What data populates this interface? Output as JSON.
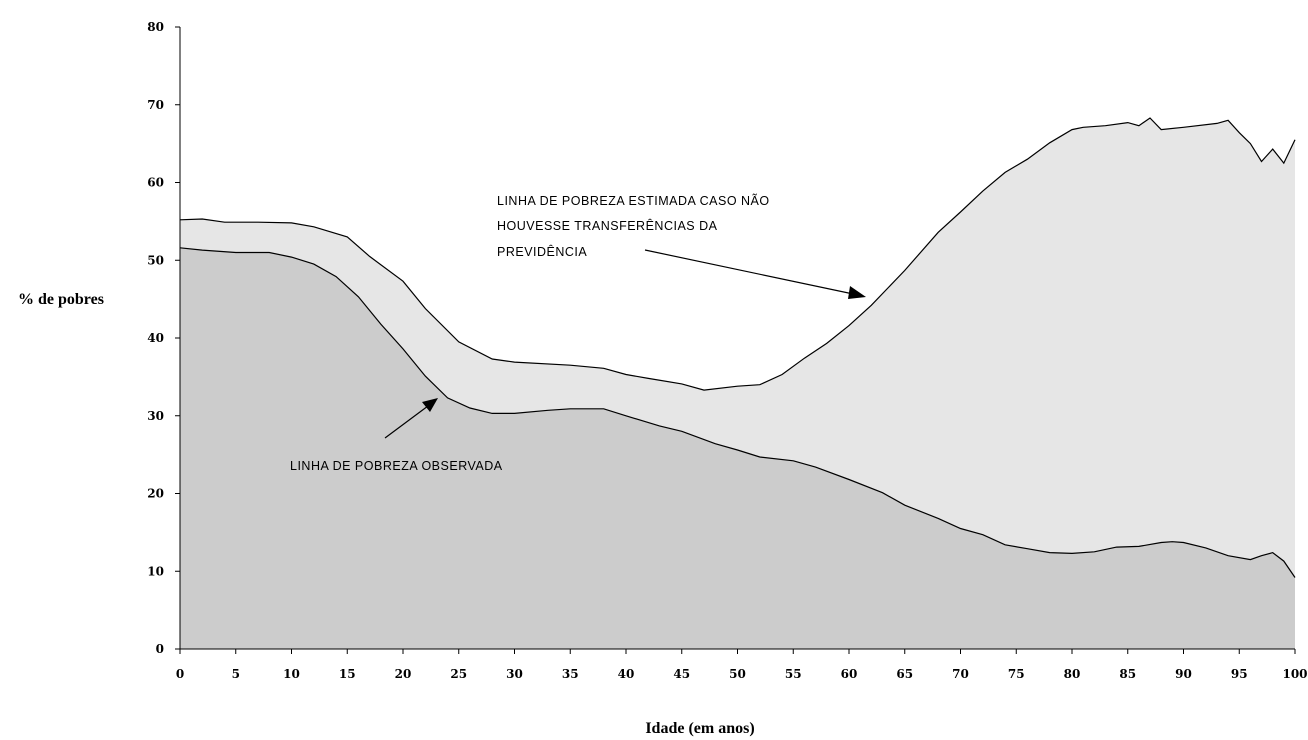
{
  "chart_data": {
    "type": "area",
    "title": "",
    "xlabel": "Idade (em anos)",
    "ylabel": "% de pobres",
    "xlim": [
      0,
      100
    ],
    "ylim": [
      0,
      80
    ],
    "x_ticks": [
      0,
      5,
      10,
      15,
      20,
      25,
      30,
      35,
      40,
      45,
      50,
      55,
      60,
      65,
      70,
      75,
      80,
      85,
      90,
      95,
      100
    ],
    "y_ticks": [
      0,
      10,
      20,
      30,
      40,
      50,
      60,
      70,
      80
    ],
    "grid": false,
    "legend": "none",
    "series": [
      {
        "color": "#e6e6e6",
        "x": [
          0,
          2,
          4,
          7,
          10,
          12,
          15,
          17,
          20,
          22,
          25,
          28,
          30,
          35,
          38,
          40,
          42,
          45,
          47,
          50,
          52,
          54,
          56,
          58,
          60,
          62,
          65,
          68,
          70,
          72,
          74,
          76,
          78,
          80,
          81,
          83,
          85,
          86,
          87,
          88,
          90,
          93,
          94,
          95,
          96,
          97,
          98,
          99,
          100
        ],
        "values": [
          55.2,
          55.3,
          54.9,
          54.9,
          54.8,
          54.3,
          53.0,
          50.5,
          47.3,
          43.8,
          39.5,
          37.3,
          36.9,
          36.5,
          36.1,
          35.3,
          34.8,
          34.1,
          33.3,
          33.8,
          34.0,
          35.3,
          37.4,
          39.3,
          41.6,
          44.2,
          48.7,
          53.6,
          56.2,
          58.9,
          61.3,
          63.0,
          65.1,
          66.8,
          67.1,
          67.3,
          67.7,
          67.3,
          68.3,
          66.8,
          67.1,
          67.6,
          68.0,
          66.4,
          65.0,
          62.7,
          64.3,
          62.5,
          65.5
        ]
      },
      {
        "color": "#cccccc",
        "x": [
          0,
          2,
          5,
          8,
          10,
          12,
          14,
          16,
          18,
          20,
          22,
          24,
          26,
          28,
          30,
          33,
          35,
          38,
          40,
          43,
          45,
          48,
          50,
          52,
          55,
          57,
          60,
          63,
          65,
          68,
          70,
          72,
          74,
          76,
          78,
          80,
          82,
          84,
          86,
          88,
          89,
          90,
          92,
          94,
          96,
          97,
          98,
          99,
          100
        ],
        "values": [
          51.6,
          51.3,
          51.0,
          51.0,
          50.4,
          49.5,
          47.9,
          45.3,
          41.8,
          38.6,
          35.1,
          32.3,
          31.0,
          30.3,
          30.3,
          30.7,
          30.9,
          30.9,
          30.0,
          28.7,
          28.0,
          26.4,
          25.6,
          24.7,
          24.2,
          23.4,
          21.8,
          20.1,
          18.5,
          16.8,
          15.5,
          14.7,
          13.4,
          12.9,
          12.4,
          12.3,
          12.5,
          13.1,
          13.2,
          13.7,
          13.8,
          13.7,
          13.0,
          12.0,
          11.5,
          12.0,
          12.4,
          11.3,
          9.2
        ]
      }
    ],
    "annotations": {
      "upper": [
        "LINHA DE POBREZA ESTIMADA CASO NÃO",
        "HOUVESSE TRANSFERÊNCIAS DA",
        "PREVIDÊNCIA"
      ],
      "lower": "LINHA DE POBREZA OBSERVADA"
    }
  }
}
